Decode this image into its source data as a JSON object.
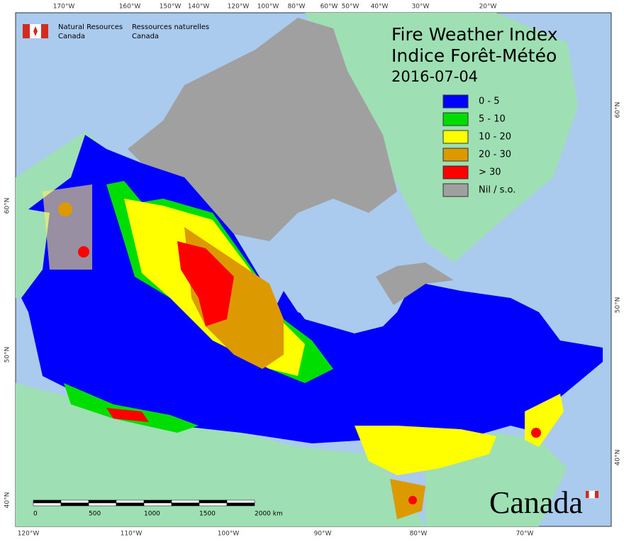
{
  "header": {
    "agency_en": [
      "Natural Resources",
      "Canada"
    ],
    "agency_fr": [
      "Ressources naturelles",
      "Canada"
    ]
  },
  "title": [
    "Fire Weather Index",
    "Indice Forêt-Météo"
  ],
  "date": "2016-07-04",
  "legend": [
    {
      "label": "0 - 5",
      "color": "#0000ff"
    },
    {
      "label": "5 - 10",
      "color": "#00dd00"
    },
    {
      "label": "10 - 20",
      "color": "#ffff00"
    },
    {
      "label": "20 - 30",
      "color": "#dd9900"
    },
    {
      "label": "> 30",
      "color": "#ff0000"
    },
    {
      "label": "Nil / s.o.",
      "color": "#a0a0a0"
    }
  ],
  "graticule": {
    "top": [
      "170°W",
      "160°W",
      "150°W",
      "140°W",
      "120°W",
      "100°W",
      "80°W",
      "60°W",
      "50°W",
      "40°W",
      "30°W",
      "20°W"
    ],
    "bottom": [
      "120°W",
      "110°W",
      "100°W",
      "90°W",
      "80°W",
      "70°W"
    ],
    "left": [
      "60°N",
      "50°N",
      "40°N"
    ],
    "right": [
      "60°N",
      "50°N",
      "40°N"
    ]
  },
  "scale": [
    "0",
    "500",
    "1000",
    "1500",
    "2000 km"
  ],
  "wordmark": "Canada"
}
